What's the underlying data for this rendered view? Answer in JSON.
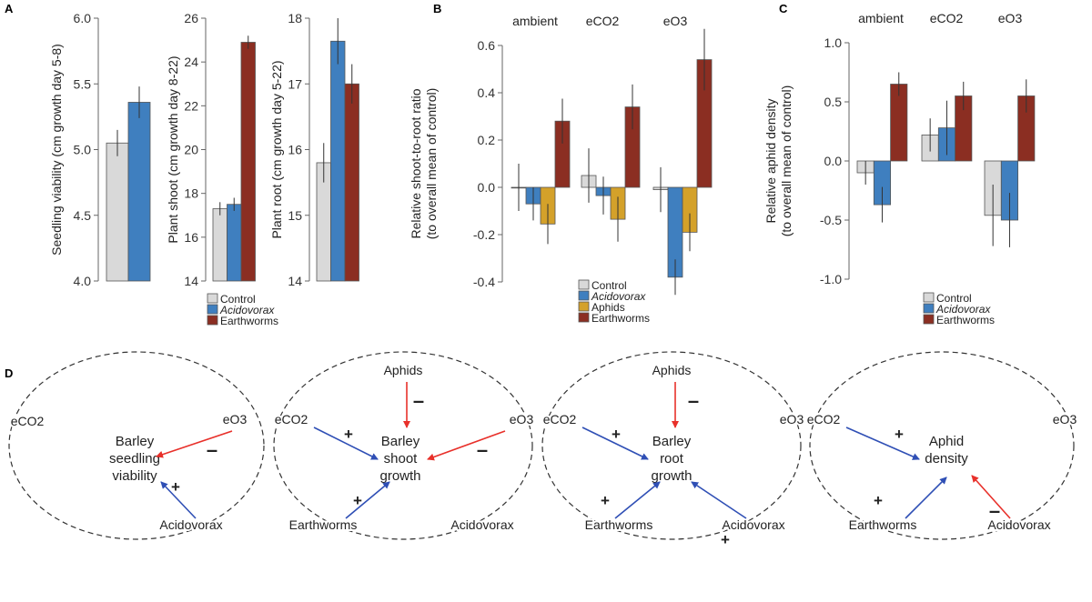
{
  "colors": {
    "Control": "#d9d9d9",
    "Acidovorax": "#3f7fbf",
    "Aphids": "#d4a12a",
    "Earthworms": "#8b2e22",
    "positive": "#2f4fb5",
    "negative": "#e8302a"
  },
  "panel_labels": [
    "A",
    "B",
    "C",
    "D"
  ],
  "chart_data": [
    {
      "type": "bar",
      "panel": "A",
      "ylabel": "Seedling viability (cm growth day 5-8)",
      "ylim": [
        4.0,
        6.0
      ],
      "yticks": [
        "4.0",
        "4.5",
        "5.0",
        "5.5",
        "6.0"
      ],
      "groups": [
        {
          "label": "",
          "bars": [
            {
              "series": "Control",
              "value": 5.05,
              "error": 0.1
            },
            {
              "series": "Acidovorax",
              "value": 5.36,
              "error": 0.12
            }
          ]
        }
      ]
    },
    {
      "type": "bar",
      "panel": "A",
      "ylabel": "Plant shoot  (cm growth day 8-22)",
      "ylim": [
        14,
        26
      ],
      "yticks": [
        "14",
        "16",
        "18",
        "20",
        "22",
        "24",
        "26"
      ],
      "groups": [
        {
          "label": "",
          "bars": [
            {
              "series": "Control",
              "value": 17.3,
              "error": 0.3
            },
            {
              "series": "Acidovorax",
              "value": 17.5,
              "error": 0.3
            },
            {
              "series": "Earthworms",
              "value": 24.9,
              "error": 0.3
            }
          ]
        }
      ]
    },
    {
      "type": "bar",
      "panel": "A",
      "ylabel": "Plant root  (cm growth day 5-22)",
      "ylim": [
        14,
        18
      ],
      "yticks": [
        "14",
        "15",
        "16",
        "17",
        "18"
      ],
      "groups": [
        {
          "label": "",
          "bars": [
            {
              "series": "Control",
              "value": 15.8,
              "error": 0.3
            },
            {
              "series": "Acidovorax",
              "value": 17.65,
              "error": 0.35
            },
            {
              "series": "Earthworms",
              "value": 17.0,
              "error": 0.3
            }
          ]
        }
      ]
    },
    {
      "type": "bar",
      "panel": "B",
      "ylabel": "Relative shoot-to-root ratio",
      "ylabel2": "(to overall mean of control)",
      "ylim": [
        -0.4,
        0.6
      ],
      "yticks": [
        "-0.4",
        "-0.2",
        "0.0",
        "0.2",
        "0.4",
        "0.6"
      ],
      "groups": [
        {
          "label": "ambient",
          "bars": [
            {
              "series": "Control",
              "value": 0.0,
              "error": 0.1
            },
            {
              "series": "Acidovorax",
              "value": -0.07,
              "error": 0.07
            },
            {
              "series": "Aphids",
              "value": -0.155,
              "error": 0.085
            },
            {
              "series": "Earthworms",
              "value": 0.28,
              "error": 0.095
            }
          ]
        },
        {
          "label": "eCO2",
          "bars": [
            {
              "series": "Control",
              "value": 0.05,
              "error": 0.115
            },
            {
              "series": "Acidovorax",
              "value": -0.035,
              "error": 0.08
            },
            {
              "series": "Aphids",
              "value": -0.135,
              "error": 0.095
            },
            {
              "series": "Earthworms",
              "value": 0.34,
              "error": 0.095
            }
          ]
        },
        {
          "label": "eO3",
          "bars": [
            {
              "series": "Control",
              "value": -0.01,
              "error": 0.095
            },
            {
              "series": "Acidovorax",
              "value": -0.38,
              "error": 0.075
            },
            {
              "series": "Aphids",
              "value": -0.19,
              "error": 0.08
            },
            {
              "series": "Earthworms",
              "value": 0.54,
              "error": 0.13
            }
          ]
        }
      ]
    },
    {
      "type": "bar",
      "panel": "C",
      "ylabel": "Relative aphid density",
      "ylabel2": "(to overall mean of control)",
      "ylim": [
        -1.0,
        1.0
      ],
      "yticks": [
        "-1.0",
        "-0.5",
        "0.0",
        "0.5",
        "1.0"
      ],
      "groups": [
        {
          "label": "ambient",
          "bars": [
            {
              "series": "Control",
              "value": -0.1,
              "error": 0.1
            },
            {
              "series": "Acidovorax",
              "value": -0.37,
              "error": 0.15
            },
            {
              "series": "Earthworms",
              "value": 0.65,
              "error": 0.1
            }
          ]
        },
        {
          "label": "eCO2",
          "bars": [
            {
              "series": "Control",
              "value": 0.22,
              "error": 0.14
            },
            {
              "series": "Acidovorax",
              "value": 0.28,
              "error": 0.23
            },
            {
              "series": "Earthworms",
              "value": 0.55,
              "error": 0.12
            }
          ]
        },
        {
          "label": "eO3",
          "bars": [
            {
              "series": "Control",
              "value": -0.46,
              "error": 0.26
            },
            {
              "series": "Acidovorax",
              "value": -0.5,
              "error": 0.23
            },
            {
              "series": "Earthworms",
              "value": 0.55,
              "error": 0.14
            }
          ]
        }
      ]
    }
  ],
  "legends": [
    {
      "panel": "A",
      "entries": [
        "Control",
        "Acidovorax",
        "Earthworms"
      ]
    },
    {
      "panel": "B",
      "entries": [
        "Control",
        "Acidovorax",
        "Aphids",
        "Earthworms"
      ]
    },
    {
      "panel": "C",
      "entries": [
        "Control",
        "Acidovorax",
        "Earthworms"
      ]
    }
  ],
  "diagrams": [
    {
      "center": [
        "Barley",
        "seedling",
        "viability"
      ],
      "nodes": [
        "eCO2",
        "eO3",
        "Acidovorax"
      ],
      "arrows": [
        {
          "from": "eO3",
          "effect": "negative",
          "sign": "-"
        },
        {
          "from": "Acidovorax",
          "effect": "positive",
          "sign": "+"
        }
      ]
    },
    {
      "center": [
        "Barley",
        "shoot",
        "growth"
      ],
      "nodes": [
        "Aphids",
        "eCO2",
        "eO3",
        "Earthworms",
        "Acidovorax"
      ],
      "arrows": [
        {
          "from": "Aphids",
          "effect": "negative",
          "sign": "-"
        },
        {
          "from": "eCO2",
          "effect": "positive",
          "sign": "+"
        },
        {
          "from": "eO3",
          "effect": "negative",
          "sign": "-"
        },
        {
          "from": "Earthworms",
          "effect": "positive",
          "sign": "+"
        }
      ]
    },
    {
      "center": [
        "Barley",
        "root",
        "growth"
      ],
      "nodes": [
        "Aphids",
        "eCO2",
        "eO3",
        "Earthworms",
        "Acidovorax"
      ],
      "arrows": [
        {
          "from": "Aphids",
          "effect": "negative",
          "sign": "-"
        },
        {
          "from": "eCO2",
          "effect": "positive",
          "sign": "+"
        },
        {
          "from": "Earthworms",
          "effect": "positive",
          "sign": "+"
        },
        {
          "from": "Acidovorax",
          "effect": "positive",
          "sign": "+"
        }
      ]
    },
    {
      "center": [
        "Aphid",
        "density"
      ],
      "nodes": [
        "eCO2",
        "eO3",
        "Earthworms",
        "Acidovorax"
      ],
      "arrows": [
        {
          "from": "eCO2",
          "effect": "positive",
          "sign": "+"
        },
        {
          "from": "Earthworms",
          "effect": "positive",
          "sign": "+"
        },
        {
          "from": "Acidovorax",
          "effect": "negative",
          "sign": "-"
        }
      ]
    }
  ]
}
